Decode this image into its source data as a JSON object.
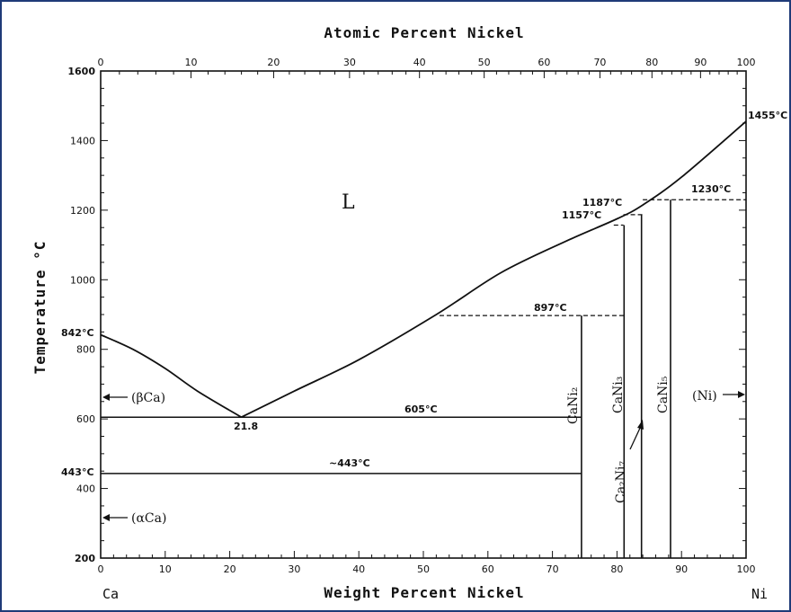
{
  "chart_data": {
    "type": "phase-diagram",
    "top_axis_title": "Atomic Percent Nickel",
    "bottom_axis_title": "Weight Percent Nickel",
    "y_axis_title": "Temperature °C",
    "left_element": "Ca",
    "right_element": "Ni",
    "ylim": [
      200,
      1600
    ],
    "xlim": [
      0,
      100
    ],
    "y_ticks": [
      "1600",
      "1400",
      "1200",
      "1000",
      "800",
      "600",
      "400",
      "200"
    ],
    "y_tick_values": [
      1600,
      1400,
      1200,
      1000,
      800,
      600,
      400,
      200
    ],
    "x_ticks_bottom": [
      "0",
      "10",
      "20",
      "30",
      "40",
      "50",
      "60",
      "70",
      "80",
      "90",
      "100"
    ],
    "x_ticks_top": [
      "0",
      "10",
      "20",
      "30",
      "40",
      "50",
      "60",
      "70",
      "80",
      "90",
      "100"
    ],
    "liquidus_left": [
      [
        0,
        842
      ],
      [
        5,
        800
      ],
      [
        10,
        745
      ],
      [
        15,
        680
      ],
      [
        21.8,
        605
      ]
    ],
    "liquidus_right": [
      [
        21.8,
        605
      ],
      [
        30,
        680
      ],
      [
        40,
        770
      ],
      [
        52,
        900
      ],
      [
        62,
        1020
      ],
      [
        72,
        1110
      ],
      [
        80,
        1175
      ],
      [
        84,
        1215
      ],
      [
        90,
        1295
      ],
      [
        100,
        1455
      ]
    ],
    "horizontal_lines": [
      {
        "x1": 0,
        "x2": 74.5,
        "t": 605,
        "dashed": false
      },
      {
        "x1": 0,
        "x2": 74.5,
        "t": 443,
        "dashed": false
      },
      {
        "x1": 52.5,
        "x2": 81,
        "t": 897,
        "dashed": true
      },
      {
        "x1": 79.5,
        "x2": 81,
        "t": 1157,
        "dashed": true
      },
      {
        "x1": 81,
        "x2": 84,
        "t": 1187,
        "dashed": true
      },
      {
        "x1": 84,
        "x2": 100,
        "t": 1230,
        "dashed": true
      }
    ],
    "phase_lines": [
      {
        "x": 74.5,
        "t_top": 897,
        "t_bottom": 200
      },
      {
        "x": 81.1,
        "t_top": 1157,
        "t_bottom": 200
      },
      {
        "x": 83.8,
        "t_top": 1187,
        "t_bottom": 200
      },
      {
        "x": 88.3,
        "t_top": 1230,
        "t_bottom": 200
      }
    ],
    "annotations": {
      "melt_ca": "842°C",
      "melt_ni": "1455°C",
      "eutectic_comp": "21.8",
      "eutectic": "605°C",
      "transform_ca": "443°C",
      "transform_line": "~443°C",
      "peritectic_897": "897°C",
      "peritectic_1157": "1157°C",
      "peritectic_1187": "1187°C",
      "peritectic_1230": "1230°C"
    },
    "phase_labels": {
      "liquid": "L",
      "beta_ca": "(βCa)",
      "alpha_ca": "(αCa)",
      "ni": "(Ni)",
      "cani2": "CaNi₂",
      "cani3": "CaNi₃",
      "cani5": "CaNi₅",
      "ca2ni7": "Ca₂Ni₇"
    }
  }
}
